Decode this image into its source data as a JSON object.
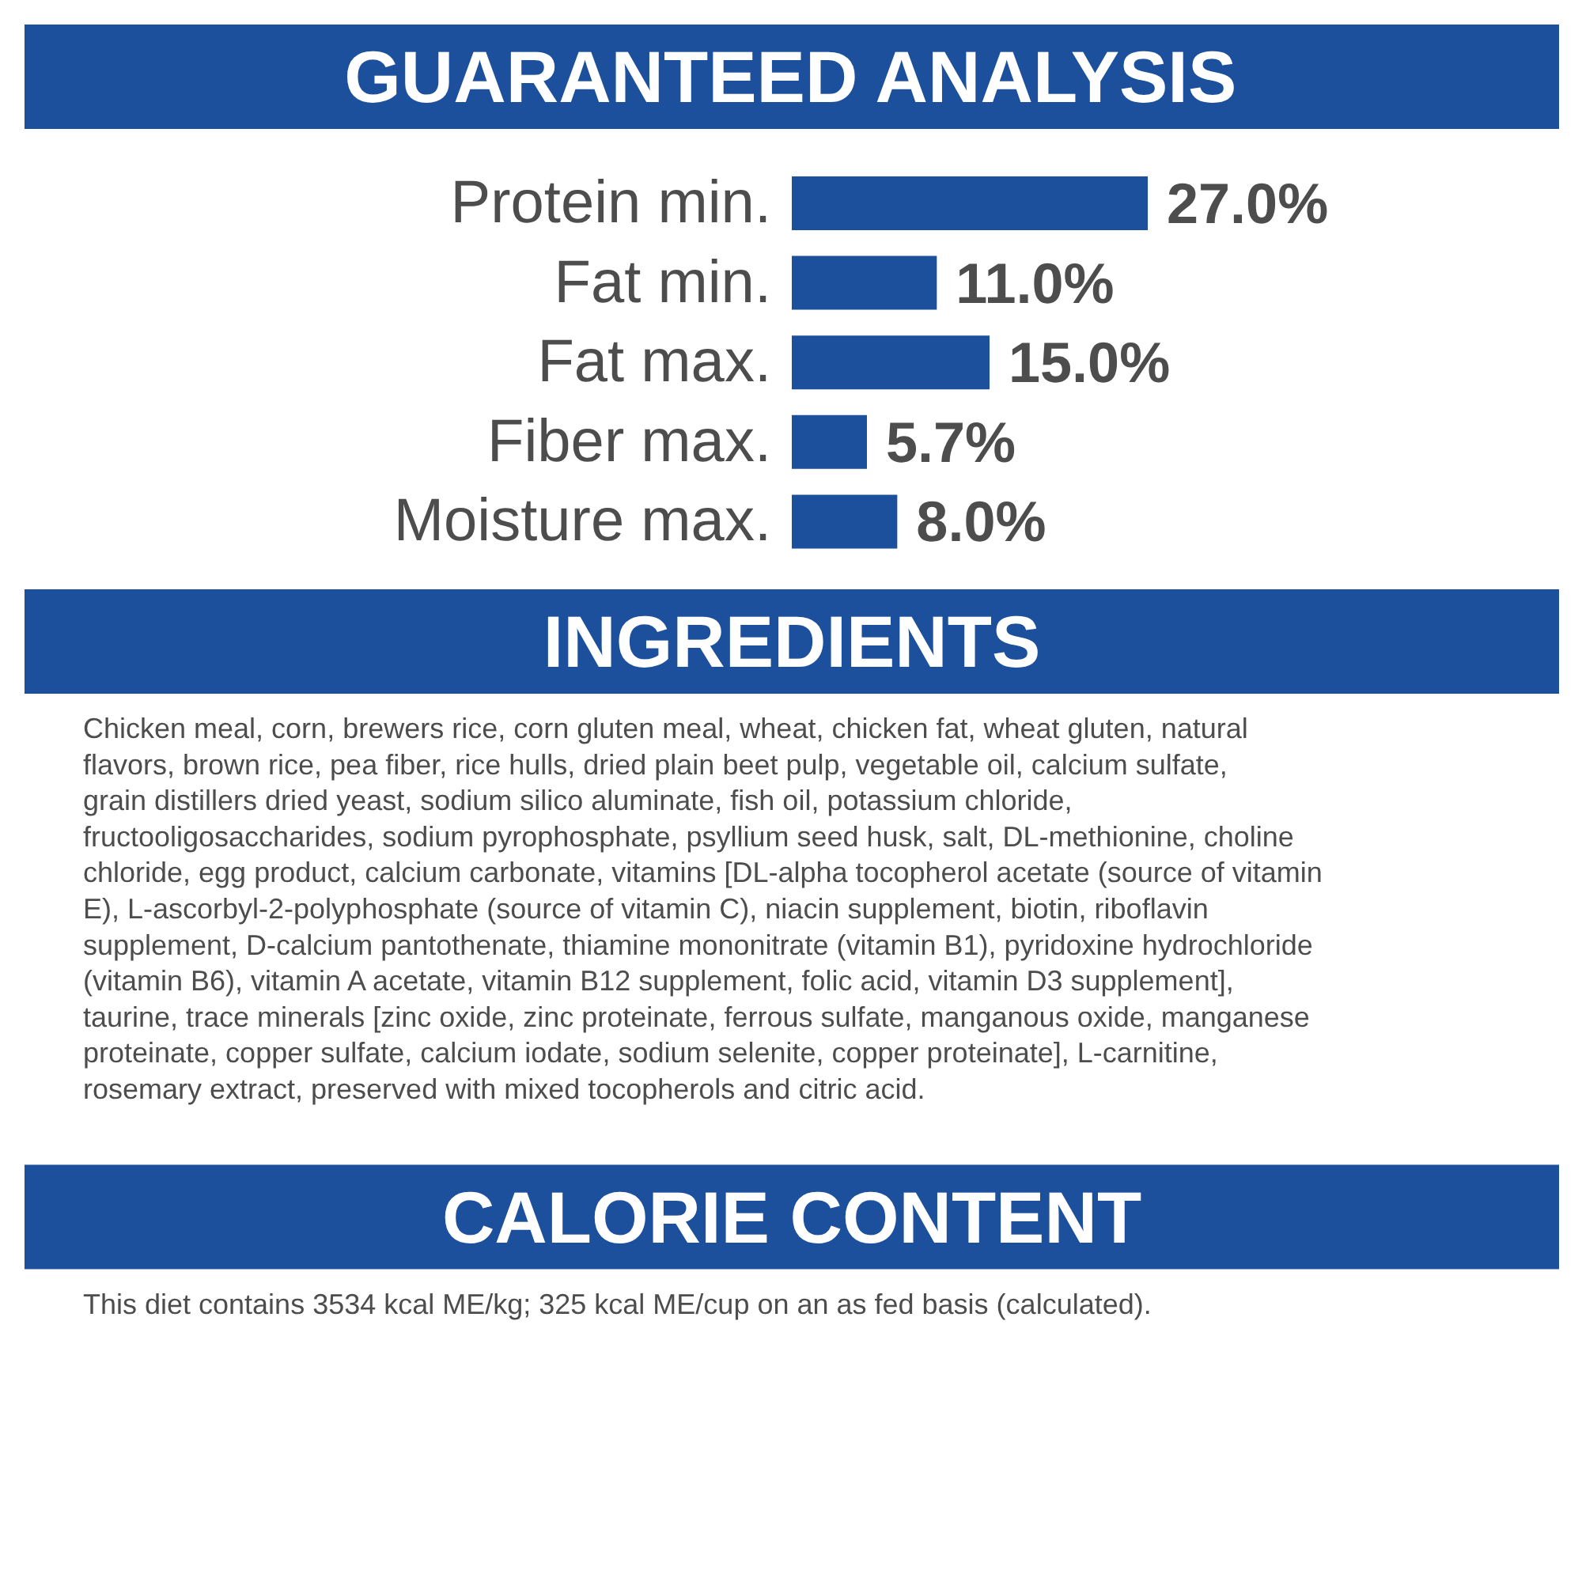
{
  "chart_data": {
    "type": "bar",
    "orientation": "horizontal",
    "title": "GUARANTEED ANALYSIS",
    "categories": [
      "Protein min.",
      "Fat min.",
      "Fat max.",
      "Fiber max.",
      "Moisture max."
    ],
    "values": [
      27.0,
      11.0,
      15.0,
      5.7,
      8.0
    ],
    "value_labels": [
      "27.0%",
      "11.0%",
      "15.0%",
      "5.7%",
      "8.0%"
    ],
    "color": "#1c4f9c",
    "grid": false,
    "annotations": [
      "INGREDIENTS",
      "Chicken meal, corn, brewers rice, corn gluten meal, wheat, chicken fat, wheat gluten, natural flavors, brown rice, pea fiber, rice hulls, dried plain beet pulp, vegetable oil, calcium sulfate, grain distillers dried yeast, sodium silico aluminate, fish oil, potassium chloride, fructooligosaccharides, sodium pyrophosphate, psyllium seed husk, salt, DL-methionine, choline chloride, egg product, calcium carbonate, vitamins [DL-alpha tocopherol acetate (source of vitamin E), L-ascorbyl-2-polyphosphate (source of vitamin C), niacin supplement, biotin, riboflavin supplement, D-calcium pantothenate, thiamine mononitrate (vitamin B1), pyridoxine hydrochloride (vitamin B6), vitamin A acetate, vitamin B12 supplement, folic acid, vitamin D3 supplement], taurine, trace minerals [zinc oxide, zinc proteinate, ferrous sulfate, manganous oxide, manganese proteinate, copper sulfate, calcium iodate, sodium selenite, copper proteinate], L-carnitine, rosemary extract, preserved with mixed tocopherols and citric acid.",
      "CALORIE CONTENT",
      "This diet contains 3534 kcal ME/kg; 325 kcal ME/cup on an as fed basis (calculated)."
    ]
  }
}
